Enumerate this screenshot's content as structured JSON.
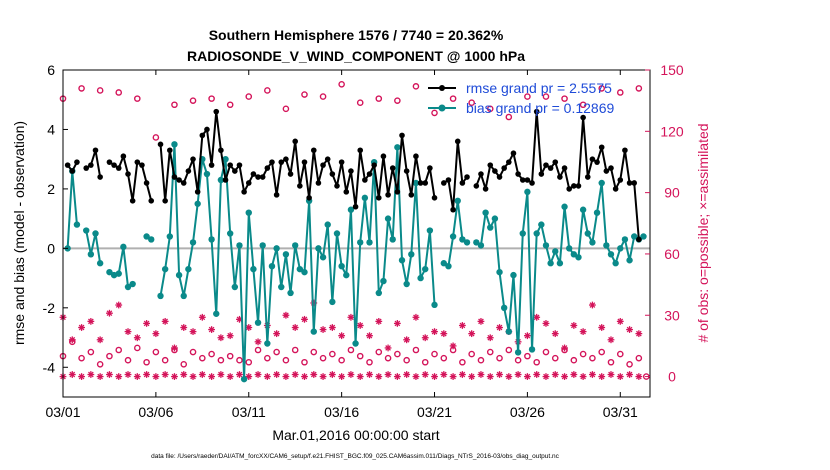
{
  "chart_data": {
    "type": "line",
    "title": "Southern Hemisphere 1576 / 7740 = 20.362%",
    "subtitle": "RADIOSONDE_V_WIND_COMPONENT @ 1000 hPa",
    "xlabel": "Mar.01,2016 00:00:00 start",
    "ylabel_left": "rmse and bias (model - observation)",
    "ylabel_right": "# of obs: o=possible; ×=assimilated",
    "footer": "data file: /Users/raeder/DAI/ATM_forcXX/CAM6_setup/f.e21.FHIST_BGC.f09_025.CAM6assim.011/Diags_NTrS_2016-03/obs_diag_output.nc",
    "xlim": [
      0,
      31.6
    ],
    "ylim_left": [
      -5,
      6
    ],
    "ylim_right": [
      -10,
      150
    ],
    "x_ticks": [
      0,
      5,
      10,
      15,
      20,
      25,
      30
    ],
    "x_tick_labels": [
      "03/01",
      "03/06",
      "03/11",
      "03/16",
      "03/21",
      "03/26",
      "03/31"
    ],
    "yl_ticks": [
      -4,
      -2,
      0,
      2,
      4,
      6
    ],
    "yl_tick_labels": [
      "-4",
      "-2",
      "0",
      "2",
      "4",
      "6"
    ],
    "yr_ticks": [
      0,
      30,
      60,
      90,
      120,
      150
    ],
    "yr_tick_labels": [
      "0",
      "30",
      "60",
      "90",
      "120",
      "150"
    ],
    "legend": [
      {
        "name": "rmse grand pr = 2.5575",
        "color": "#000000"
      },
      {
        "name": "bias grand pr = 0.12869",
        "color": "#0a8a8a"
      }
    ],
    "x": [
      0.0,
      0.25,
      0.5,
      0.75,
      1.0,
      1.25,
      1.5,
      1.75,
      2.0,
      2.25,
      2.5,
      2.75,
      3.0,
      3.25,
      3.5,
      3.75,
      4.0,
      4.25,
      4.5,
      4.75,
      5.0,
      5.25,
      5.5,
      5.75,
      6.0,
      6.25,
      6.5,
      6.75,
      7.0,
      7.25,
      7.5,
      7.75,
      8.0,
      8.25,
      8.5,
      8.75,
      9.0,
      9.25,
      9.5,
      9.75,
      10.0,
      10.25,
      10.5,
      10.75,
      11.0,
      11.25,
      11.5,
      11.75,
      12.0,
      12.25,
      12.5,
      12.75,
      13.0,
      13.25,
      13.5,
      13.75,
      14.0,
      14.25,
      14.5,
      14.75,
      15.0,
      15.25,
      15.5,
      15.75,
      16.0,
      16.25,
      16.5,
      16.75,
      17.0,
      17.25,
      17.5,
      17.75,
      18.0,
      18.25,
      18.5,
      18.75,
      19.0,
      19.25,
      19.5,
      19.75,
      20.0,
      20.25,
      20.5,
      20.75,
      21.0,
      21.25,
      21.5,
      21.75,
      22.0,
      22.25,
      22.5,
      22.75,
      23.0,
      23.25,
      23.5,
      23.75,
      24.0,
      24.25,
      24.5,
      24.75,
      25.0,
      25.25,
      25.5,
      25.75,
      26.0,
      26.25,
      26.5,
      26.75,
      27.0,
      27.25,
      27.5,
      27.75,
      28.0,
      28.25,
      28.5,
      28.75,
      29.0,
      29.25,
      29.5,
      29.75,
      30.0,
      30.25,
      30.5,
      30.75,
      31.0,
      31.25
    ],
    "series": [
      {
        "name": "rmse",
        "color": "#000000",
        "values": [
          null,
          2.8,
          2.6,
          2.9,
          null,
          2.7,
          2.8,
          3.3,
          2.4,
          null,
          2.9,
          2.8,
          2.7,
          3.1,
          2.5,
          1.6,
          2.9,
          2.8,
          2.2,
          1.6,
          null,
          3.5,
          1.6,
          3.3,
          2.4,
          2.3,
          2.2,
          2.6,
          3.0,
          1.9,
          3.8,
          4.0,
          2.8,
          4.6,
          3.3,
          2.3,
          2.8,
          2.6,
          2.8,
          1.9,
          2.2,
          2.5,
          2.4,
          2.4,
          2.7,
          2.9,
          1.8,
          2.9,
          3.0,
          2.5,
          3.6,
          2.1,
          2.9,
          1.7,
          3.3,
          2.2,
          2.8,
          3.0,
          2.5,
          2.1,
          2.9,
          1.9,
          2.6,
          1.4,
          3.3,
          2.3,
          2.5,
          2.8,
          1.7,
          3.1,
          1.8,
          2.7,
          1.9,
          3.8,
          2.6,
          1.8,
          3.1,
          2.2,
          2.2,
          2.7,
          1.7,
          null,
          2.2,
          2.3,
          1.3,
          3.6,
          2.2,
          2.4,
          null,
          2.1,
          2.5,
          2.0,
          2.8,
          2.6,
          2.4,
          2.7,
          2.9,
          3.2,
          2.5,
          2.3,
          2.3,
          2.2,
          4.6,
          2.5,
          2.8,
          2.7,
          2.9,
          2.4,
          2.7,
          2.0,
          2.1,
          2.1,
          4.4,
          2.4,
          3.0,
          2.9,
          3.4,
          2.6,
          2.7,
          2.0,
          2.3,
          3.3,
          2.2,
          2.2,
          0.3,
          null
        ]
      },
      {
        "name": "bias",
        "color": "#0a8a8a",
        "values": [
          null,
          0.0,
          2.6,
          0.8,
          null,
          0.6,
          -0.2,
          0.5,
          -0.5,
          null,
          -0.8,
          -0.9,
          -0.85,
          0.05,
          -1.3,
          -1.2,
          null,
          null,
          0.4,
          0.3,
          null,
          -1.6,
          -0.7,
          0.4,
          3.5,
          -0.9,
          -1.6,
          -0.7,
          0.2,
          1.5,
          3.0,
          2.5,
          0.3,
          -2.2,
          2.3,
          3.0,
          0.5,
          -1.3,
          0.1,
          -4.4,
          1.2,
          -0.7,
          -2.5,
          0.1,
          -3.2,
          -0.6,
          0.0,
          -1.3,
          -0.2,
          -1.5,
          0.1,
          -0.7,
          -0.8,
          1.6,
          -2.8,
          0.0,
          -0.3,
          0.8,
          -1.8,
          0.5,
          -0.6,
          -0.9,
          1.3,
          -3.2,
          0.2,
          1.7,
          0.2,
          2.9,
          -1.5,
          -1.1,
          1.0,
          0.3,
          3.4,
          -0.4,
          -1.2,
          -0.2,
          2.2,
          -1.0,
          -0.7,
          0.6,
          -1.9,
          null,
          -0.5,
          -0.6,
          0.4,
          1.6,
          0.3,
          0.2,
          null,
          0.2,
          0.1,
          1.2,
          0.7,
          1.0,
          -0.8,
          -2.0,
          -2.8,
          -0.9,
          -3.5,
          0.5,
          1.9,
          -3.4,
          0.5,
          0.8,
          0.1,
          -0.5,
          -0.1,
          -0.5,
          1.4,
          0.0,
          -0.2,
          -0.3,
          1.3,
          0.5,
          0.2,
          1.2,
          2.2,
          0.1,
          -0.2,
          -0.5,
          0.0,
          0.3,
          -0.4,
          0.4,
          0.3,
          0.4
        ]
      }
    ],
    "obs_possible": [
      {
        "x": 0,
        "v": 136
      },
      {
        "x": 1,
        "v": 141
      },
      {
        "x": 2,
        "v": 140
      },
      {
        "x": 3,
        "v": 139
      },
      {
        "x": 4,
        "v": 136
      },
      {
        "x": 5,
        "v": 117
      },
      {
        "x": 6,
        "v": 133
      },
      {
        "x": 7,
        "v": 135
      },
      {
        "x": 8,
        "v": 136
      },
      {
        "x": 9,
        "v": 133
      },
      {
        "x": 10,
        "v": 137
      },
      {
        "x": 11,
        "v": 140
      },
      {
        "x": 12,
        "v": 131
      },
      {
        "x": 13,
        "v": 138
      },
      {
        "x": 14,
        "v": 137
      },
      {
        "x": 15,
        "v": 143
      },
      {
        "x": 16,
        "v": 134
      },
      {
        "x": 17,
        "v": 136
      },
      {
        "x": 18,
        "v": 135
      },
      {
        "x": 19,
        "v": 142
      },
      {
        "x": 20,
        "v": 129
      },
      {
        "x": 21,
        "v": 136
      },
      {
        "x": 22,
        "v": 134
      },
      {
        "x": 23,
        "v": 131
      },
      {
        "x": 24,
        "v": 127
      },
      {
        "x": 25,
        "v": 137
      },
      {
        "x": 26,
        "v": 137
      },
      {
        "x": 27,
        "v": 136
      },
      {
        "x": 28,
        "v": 133
      },
      {
        "x": 29,
        "v": 141
      },
      {
        "x": 30,
        "v": 139
      },
      {
        "x": 31,
        "v": 141
      }
    ],
    "obs_possible_low": [
      {
        "x": 0,
        "v": 10
      },
      {
        "x": 0.5,
        "v": 17
      },
      {
        "x": 1,
        "v": 9
      },
      {
        "x": 1.5,
        "v": 12
      },
      {
        "x": 2,
        "v": 6
      },
      {
        "x": 2.5,
        "v": 10
      },
      {
        "x": 3,
        "v": 13
      },
      {
        "x": 3.5,
        "v": 8
      },
      {
        "x": 4,
        "v": 14
      },
      {
        "x": 4.5,
        "v": 7
      },
      {
        "x": 5,
        "v": 12
      },
      {
        "x": 5.5,
        "v": 8
      },
      {
        "x": 6,
        "v": 13
      },
      {
        "x": 6.5,
        "v": 6
      },
      {
        "x": 7,
        "v": 12
      },
      {
        "x": 7.5,
        "v": 9
      },
      {
        "x": 8,
        "v": 11
      },
      {
        "x": 8.5,
        "v": 8
      },
      {
        "x": 9,
        "v": 10
      },
      {
        "x": 9.5,
        "v": 8
      },
      {
        "x": 10,
        "v": 7
      },
      {
        "x": 10.5,
        "v": 13
      },
      {
        "x": 11,
        "v": 9
      },
      {
        "x": 11.5,
        "v": 12
      },
      {
        "x": 12,
        "v": 8
      },
      {
        "x": 12.5,
        "v": 13
      },
      {
        "x": 13,
        "v": 7
      },
      {
        "x": 13.5,
        "v": 12
      },
      {
        "x": 14,
        "v": 9
      },
      {
        "x": 14.5,
        "v": 11
      },
      {
        "x": 15,
        "v": 8
      },
      {
        "x": 15.5,
        "v": 13
      },
      {
        "x": 16,
        "v": 10
      },
      {
        "x": 16.5,
        "v": 7
      },
      {
        "x": 17,
        "v": 12
      },
      {
        "x": 17.5,
        "v": 9
      },
      {
        "x": 18,
        "v": 11
      },
      {
        "x": 18.5,
        "v": 8
      },
      {
        "x": 19,
        "v": 13
      },
      {
        "x": 19.5,
        "v": 7
      },
      {
        "x": 20,
        "v": 11
      },
      {
        "x": 20.5,
        "v": 9
      },
      {
        "x": 21,
        "v": 13
      },
      {
        "x": 21.5,
        "v": 7
      },
      {
        "x": 22,
        "v": 11
      },
      {
        "x": 22.5,
        "v": 8
      },
      {
        "x": 23,
        "v": 12
      },
      {
        "x": 23.5,
        "v": 9
      },
      {
        "x": 24,
        "v": 13
      },
      {
        "x": 24.5,
        "v": 8
      },
      {
        "x": 25,
        "v": 10
      },
      {
        "x": 25.5,
        "v": 7
      },
      {
        "x": 26,
        "v": 12
      },
      {
        "x": 26.5,
        "v": 9
      },
      {
        "x": 27,
        "v": 13
      },
      {
        "x": 27.5,
        "v": 8
      },
      {
        "x": 28,
        "v": 11
      },
      {
        "x": 28.5,
        "v": 9
      },
      {
        "x": 29,
        "v": 12
      },
      {
        "x": 29.5,
        "v": 7
      },
      {
        "x": 30,
        "v": 11
      },
      {
        "x": 30.5,
        "v": 6
      },
      {
        "x": 31,
        "v": 9
      },
      {
        "x": 31.4,
        "v": 0
      }
    ],
    "obs_assimilated": [
      {
        "x": 0,
        "v": 29
      },
      {
        "x": 0.5,
        "v": 18
      },
      {
        "x": 1,
        "v": 24
      },
      {
        "x": 1.5,
        "v": 27
      },
      {
        "x": 2,
        "v": 18
      },
      {
        "x": 2.5,
        "v": 31
      },
      {
        "x": 3,
        "v": 35
      },
      {
        "x": 3.5,
        "v": 22
      },
      {
        "x": 4,
        "v": 19
      },
      {
        "x": 4.5,
        "v": 26
      },
      {
        "x": 5,
        "v": 21
      },
      {
        "x": 5.5,
        "v": 27
      },
      {
        "x": 6,
        "v": 14
      },
      {
        "x": 6.5,
        "v": 24
      },
      {
        "x": 7,
        "v": 22
      },
      {
        "x": 7.5,
        "v": 29
      },
      {
        "x": 8,
        "v": 23
      },
      {
        "x": 8.5,
        "v": 19
      },
      {
        "x": 9,
        "v": 20
      },
      {
        "x": 9.5,
        "v": 28
      },
      {
        "x": 10,
        "v": 24
      },
      {
        "x": 10.5,
        "v": 17
      },
      {
        "x": 11,
        "v": 25
      },
      {
        "x": 11.5,
        "v": 21
      },
      {
        "x": 12,
        "v": 30
      },
      {
        "x": 12.5,
        "v": 24
      },
      {
        "x": 13,
        "v": 28
      },
      {
        "x": 13.5,
        "v": 36
      },
      {
        "x": 14,
        "v": 23
      },
      {
        "x": 14.5,
        "v": 24
      },
      {
        "x": 15,
        "v": 20
      },
      {
        "x": 15.5,
        "v": 29
      },
      {
        "x": 16,
        "v": 25
      },
      {
        "x": 16.5,
        "v": 20
      },
      {
        "x": 17,
        "v": 27
      },
      {
        "x": 17.5,
        "v": 14
      },
      {
        "x": 18,
        "v": 26
      },
      {
        "x": 18.5,
        "v": 18
      },
      {
        "x": 19,
        "v": 29
      },
      {
        "x": 19.5,
        "v": 19
      },
      {
        "x": 20,
        "v": 22
      },
      {
        "x": 20.5,
        "v": 21
      },
      {
        "x": 21,
        "v": 15
      },
      {
        "x": 21.5,
        "v": 25
      },
      {
        "x": 22,
        "v": 21
      },
      {
        "x": 22.5,
        "v": 27
      },
      {
        "x": 23,
        "v": 19
      },
      {
        "x": 23.5,
        "v": 24
      },
      {
        "x": 24,
        "v": 22
      },
      {
        "x": 24.5,
        "v": 17
      },
      {
        "x": 25,
        "v": 20
      },
      {
        "x": 25.5,
        "v": 29
      },
      {
        "x": 26,
        "v": 26
      },
      {
        "x": 26.5,
        "v": 21
      },
      {
        "x": 27,
        "v": 14
      },
      {
        "x": 27.5,
        "v": 25
      },
      {
        "x": 28,
        "v": 22
      },
      {
        "x": 28.5,
        "v": 35
      },
      {
        "x": 29,
        "v": 24
      },
      {
        "x": 29.5,
        "v": 18
      },
      {
        "x": 30,
        "v": 27
      },
      {
        "x": 30.5,
        "v": 23
      },
      {
        "x": 31,
        "v": 21
      }
    ],
    "obs_assimilated_low": [
      {
        "x": 0,
        "v": 0
      },
      {
        "x": 0.5,
        "v": 1
      },
      {
        "x": 1,
        "v": 0
      },
      {
        "x": 1.5,
        "v": 1
      },
      {
        "x": 2,
        "v": 0
      },
      {
        "x": 2.5,
        "v": 1
      },
      {
        "x": 3,
        "v": 0
      },
      {
        "x": 3.5,
        "v": 1
      },
      {
        "x": 4,
        "v": 0
      },
      {
        "x": 4.5,
        "v": 1
      },
      {
        "x": 5,
        "v": 0
      },
      {
        "x": 5.5,
        "v": 1
      },
      {
        "x": 6,
        "v": 0
      },
      {
        "x": 6.5,
        "v": 1
      },
      {
        "x": 7,
        "v": 0
      },
      {
        "x": 7.5,
        "v": 1
      },
      {
        "x": 8,
        "v": 0
      },
      {
        "x": 8.5,
        "v": 1
      },
      {
        "x": 9,
        "v": 0
      },
      {
        "x": 9.5,
        "v": 1
      },
      {
        "x": 10,
        "v": 0
      },
      {
        "x": 10.5,
        "v": 1
      },
      {
        "x": 11,
        "v": 0
      },
      {
        "x": 11.5,
        "v": 1
      },
      {
        "x": 12,
        "v": 0
      },
      {
        "x": 12.5,
        "v": 1
      },
      {
        "x": 13,
        "v": 0
      },
      {
        "x": 13.5,
        "v": 1
      },
      {
        "x": 14,
        "v": 0
      },
      {
        "x": 14.5,
        "v": 1
      },
      {
        "x": 15,
        "v": 0
      },
      {
        "x": 15.5,
        "v": 1
      },
      {
        "x": 16,
        "v": 0
      },
      {
        "x": 16.5,
        "v": 1
      },
      {
        "x": 17,
        "v": 0
      },
      {
        "x": 17.5,
        "v": 1
      },
      {
        "x": 18,
        "v": 0
      },
      {
        "x": 18.5,
        "v": 1
      },
      {
        "x": 19,
        "v": 0
      },
      {
        "x": 19.5,
        "v": 1
      },
      {
        "x": 20,
        "v": 0
      },
      {
        "x": 20.5,
        "v": 1
      },
      {
        "x": 21,
        "v": 0
      },
      {
        "x": 21.5,
        "v": 1
      },
      {
        "x": 22,
        "v": 0
      },
      {
        "x": 22.5,
        "v": 1
      },
      {
        "x": 23,
        "v": 0
      },
      {
        "x": 23.5,
        "v": 1
      },
      {
        "x": 24,
        "v": 0
      },
      {
        "x": 24.5,
        "v": 1
      },
      {
        "x": 25,
        "v": 0
      },
      {
        "x": 25.5,
        "v": 1
      },
      {
        "x": 26,
        "v": 0
      },
      {
        "x": 26.5,
        "v": 1
      },
      {
        "x": 27,
        "v": 0
      },
      {
        "x": 27.5,
        "v": 1
      },
      {
        "x": 28,
        "v": 0
      },
      {
        "x": 28.5,
        "v": 1
      },
      {
        "x": 29,
        "v": 0
      },
      {
        "x": 29.5,
        "v": 1
      },
      {
        "x": 30,
        "v": 0
      },
      {
        "x": 30.5,
        "v": 1
      },
      {
        "x": 31,
        "v": 0
      }
    ]
  },
  "colors": {
    "rmse": "#000000",
    "bias": "#0a8a8a",
    "obs": "#d4145a",
    "right_axis": "#d4145a",
    "zero_line": "#b0b0b0",
    "legend_text": "#1f4bd8"
  }
}
